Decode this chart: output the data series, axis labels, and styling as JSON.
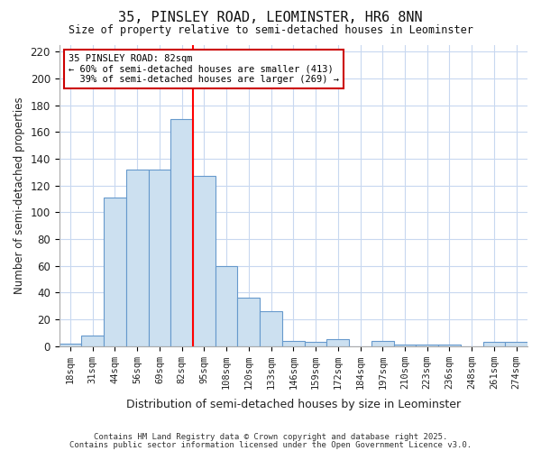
{
  "title1": "35, PINSLEY ROAD, LEOMINSTER, HR6 8NN",
  "title2": "Size of property relative to semi-detached houses in Leominster",
  "xlabel": "Distribution of semi-detached houses by size in Leominster",
  "ylabel": "Number of semi-detached properties",
  "categories": [
    "18sqm",
    "31sqm",
    "44sqm",
    "56sqm",
    "69sqm",
    "82sqm",
    "95sqm",
    "108sqm",
    "120sqm",
    "133sqm",
    "146sqm",
    "159sqm",
    "172sqm",
    "184sqm",
    "197sqm",
    "210sqm",
    "223sqm",
    "236sqm",
    "248sqm",
    "261sqm",
    "274sqm"
  ],
  "values": [
    2,
    8,
    111,
    132,
    132,
    170,
    127,
    60,
    36,
    26,
    4,
    3,
    5,
    0,
    4,
    1,
    1,
    1,
    0,
    3,
    3
  ],
  "bar_color": "#cce0f0",
  "bar_edge_color": "#6699cc",
  "red_line_index": 5,
  "annotation_line1": "35 PINSLEY ROAD: 82sqm",
  "annotation_line2": "← 60% of semi-detached houses are smaller (413)",
  "annotation_line3": "  39% of semi-detached houses are larger (269) →",
  "annotation_box_color": "#ffffff",
  "annotation_border_color": "#cc0000",
  "background_color": "#ffffff",
  "grid_color": "#c8d8f0",
  "ylim": [
    0,
    225
  ],
  "yticks": [
    0,
    20,
    40,
    60,
    80,
    100,
    120,
    140,
    160,
    180,
    200,
    220
  ],
  "footer1": "Contains HM Land Registry data © Crown copyright and database right 2025.",
  "footer2": "Contains public sector information licensed under the Open Government Licence v3.0."
}
